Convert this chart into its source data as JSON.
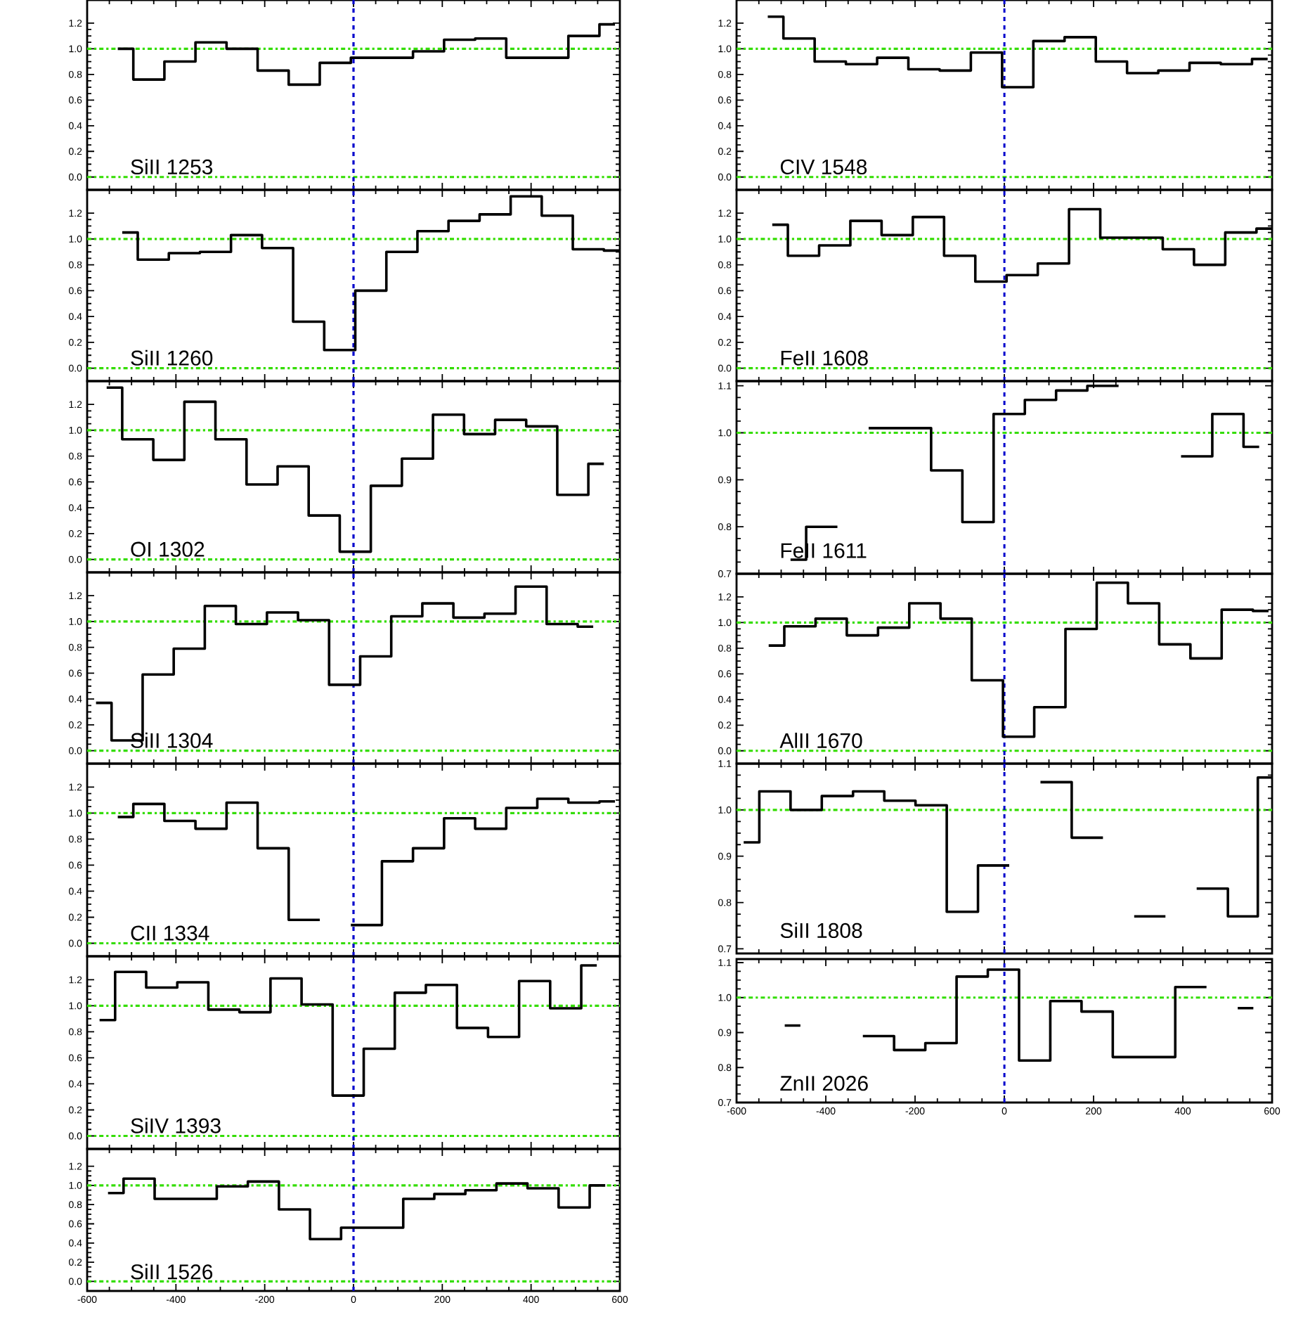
{
  "chart_data": [
    {
      "type": "step",
      "title": "SiII 1253",
      "color": "#000000",
      "x": [
        -531,
        -461,
        -391,
        -321,
        -251,
        -181,
        -111,
        -41,
        29,
        99,
        169,
        239,
        309,
        379,
        449,
        519,
        589
      ],
      "values": [
        1.0,
        0.76,
        0.9,
        1.05,
        1.0,
        0.83,
        0.72,
        0.89,
        0.93,
        0.93,
        0.98,
        1.07,
        1.08,
        0.93,
        0.93,
        1.1,
        1.19
      ],
      "xlim": [
        -600,
        600
      ],
      "ylim": [
        -0.1,
        1.38
      ],
      "xticks": [
        -600,
        -400,
        -200,
        0,
        200,
        400,
        600
      ],
      "yticks": [
        {
          "value": 0,
          "label": "0.0"
        },
        {
          "value": 0.2,
          "label": "0.2"
        },
        {
          "value": 0.4,
          "label": "0.4"
        },
        {
          "value": 0.6,
          "label": "0.6"
        },
        {
          "value": 0.8,
          "label": "0.8"
        },
        {
          "value": 1.0,
          "label": "1.0"
        },
        {
          "value": 1.2,
          "label": "1.2"
        }
      ],
      "tick_labels": "y",
      "ref_lines": [
        {
          "axis": "y",
          "value": 0,
          "color": "#33dd00",
          "line_style": "dashdot"
        },
        {
          "axis": "y",
          "value": 1,
          "color": "#33dd00",
          "line_style": "dashdot"
        },
        {
          "axis": "x",
          "value": 0,
          "color": "#0000cc",
          "line_style": "dashed"
        }
      ]
    },
    {
      "type": "step",
      "title": "SiII 1260",
      "color": "#000000",
      "x": [
        -521,
        -451,
        -381,
        -311,
        -241,
        -171,
        -101,
        -31,
        39,
        109,
        179,
        249,
        319,
        389,
        459,
        529,
        599
      ],
      "values": [
        1.05,
        0.84,
        0.89,
        0.9,
        1.03,
        0.93,
        0.36,
        0.14,
        0.6,
        0.9,
        1.06,
        1.14,
        1.19,
        1.33,
        1.18,
        0.92,
        0.91
      ],
      "xlim": [
        -600,
        600
      ],
      "ylim": [
        -0.1,
        1.38
      ],
      "xticks": [
        -600,
        -400,
        -200,
        0,
        200,
        400,
        600
      ],
      "yticks": [
        {
          "value": 0,
          "label": "0.0"
        },
        {
          "value": 0.2,
          "label": "0.2"
        },
        {
          "value": 0.4,
          "label": "0.4"
        },
        {
          "value": 0.6,
          "label": "0.6"
        },
        {
          "value": 0.8,
          "label": "0.8"
        },
        {
          "value": 1.0,
          "label": "1.0"
        },
        {
          "value": 1.2,
          "label": "1.2"
        }
      ],
      "tick_labels": "y",
      "ref_lines": [
        {
          "axis": "y",
          "value": 0,
          "color": "#33dd00",
          "line_style": "dashdot"
        },
        {
          "axis": "y",
          "value": 1,
          "color": "#33dd00",
          "line_style": "dashdot"
        },
        {
          "axis": "x",
          "value": 0,
          "color": "#0000cc",
          "line_style": "dashed"
        }
      ]
    },
    {
      "type": "step",
      "title": "OI 1302",
      "color": "#000000",
      "x": [
        -556,
        -486,
        -416,
        -346,
        -276,
        -206,
        -136,
        -66,
        4,
        74,
        144,
        214,
        284,
        354,
        424,
        494,
        564
      ],
      "values": [
        1.33,
        0.93,
        0.77,
        1.22,
        0.93,
        0.58,
        0.72,
        0.34,
        0.06,
        0.57,
        0.78,
        1.12,
        0.97,
        1.08,
        1.03,
        0.5,
        0.74
      ],
      "xlim": [
        -600,
        600
      ],
      "ylim": [
        -0.1,
        1.38
      ],
      "xticks": [
        -600,
        -400,
        -200,
        0,
        200,
        400,
        600
      ],
      "yticks": [
        {
          "value": 0,
          "label": "0.0"
        },
        {
          "value": 0.2,
          "label": "0.2"
        },
        {
          "value": 0.4,
          "label": "0.4"
        },
        {
          "value": 0.6,
          "label": "0.6"
        },
        {
          "value": 0.8,
          "label": "0.8"
        },
        {
          "value": 1.0,
          "label": "1.0"
        },
        {
          "value": 1.2,
          "label": "1.2"
        }
      ],
      "tick_labels": "y",
      "ref_lines": [
        {
          "axis": "y",
          "value": 0,
          "color": "#33dd00",
          "line_style": "dashdot"
        },
        {
          "axis": "y",
          "value": 1,
          "color": "#33dd00",
          "line_style": "dashdot"
        },
        {
          "axis": "x",
          "value": 0,
          "color": "#0000cc",
          "line_style": "dashed"
        }
      ]
    },
    {
      "type": "step",
      "title": "SiII 1304",
      "color": "#000000",
      "x": [
        -580,
        -510,
        -440,
        -370,
        -300,
        -230,
        -160,
        -90,
        -20,
        50,
        120,
        190,
        260,
        330,
        400,
        470,
        540
      ],
      "values": [
        0.37,
        0.08,
        0.59,
        0.79,
        1.12,
        0.98,
        1.07,
        1.01,
        0.51,
        0.73,
        1.04,
        1.14,
        1.03,
        1.06,
        1.27,
        0.98,
        0.96
      ],
      "xlim": [
        -600,
        600
      ],
      "ylim": [
        -0.1,
        1.38
      ],
      "xticks": [
        -600,
        -400,
        -200,
        0,
        200,
        400,
        600
      ],
      "yticks": [
        {
          "value": 0,
          "label": "0.0"
        },
        {
          "value": 0.2,
          "label": "0.2"
        },
        {
          "value": 0.4,
          "label": "0.4"
        },
        {
          "value": 0.6,
          "label": "0.6"
        },
        {
          "value": 0.8,
          "label": "0.8"
        },
        {
          "value": 1.0,
          "label": "1.0"
        },
        {
          "value": 1.2,
          "label": "1.2"
        }
      ],
      "tick_labels": "y",
      "ref_lines": [
        {
          "axis": "y",
          "value": 0,
          "color": "#33dd00",
          "line_style": "dashdot"
        },
        {
          "axis": "y",
          "value": 1,
          "color": "#33dd00",
          "line_style": "dashdot"
        },
        {
          "axis": "x",
          "value": 0,
          "color": "#0000cc",
          "line_style": "dashed"
        }
      ]
    },
    {
      "type": "step",
      "title": "CII 1334",
      "color": "#000000",
      "x": [
        -531,
        -461,
        -391,
        -321,
        -251,
        -181,
        -111,
        -41,
        29,
        99,
        169,
        239,
        309,
        379,
        449,
        519,
        589
      ],
      "values": [
        0.97,
        1.07,
        0.94,
        0.88,
        1.08,
        0.73,
        0.18,
        null,
        0.14,
        0.63,
        0.73,
        0.96,
        0.88,
        1.04,
        1.11,
        1.08,
        1.09
      ],
      "xlim": [
        -600,
        600
      ],
      "ylim": [
        -0.1,
        1.38
      ],
      "xticks": [
        -600,
        -400,
        -200,
        0,
        200,
        400,
        600
      ],
      "yticks": [
        {
          "value": 0,
          "label": "0.0"
        },
        {
          "value": 0.2,
          "label": "0.2"
        },
        {
          "value": 0.4,
          "label": "0.4"
        },
        {
          "value": 0.6,
          "label": "0.6"
        },
        {
          "value": 0.8,
          "label": "0.8"
        },
        {
          "value": 1.0,
          "label": "1.0"
        },
        {
          "value": 1.2,
          "label": "1.2"
        }
      ],
      "tick_labels": "y",
      "ref_lines": [
        {
          "axis": "y",
          "value": 0,
          "color": "#33dd00",
          "line_style": "dashdot"
        },
        {
          "axis": "y",
          "value": 1,
          "color": "#33dd00",
          "line_style": "dashdot"
        },
        {
          "axis": "x",
          "value": 0,
          "color": "#0000cc",
          "line_style": "dashed"
        }
      ]
    },
    {
      "type": "step",
      "title": "SiIV 1393",
      "color": "#000000",
      "x": [
        -572,
        -502,
        -432,
        -362,
        -292,
        -222,
        -152,
        -82,
        -12,
        58,
        128,
        198,
        268,
        338,
        408,
        478,
        548
      ],
      "values": [
        0.89,
        1.26,
        1.14,
        1.18,
        0.97,
        0.95,
        1.21,
        1.01,
        0.31,
        0.67,
        1.1,
        1.16,
        0.83,
        0.76,
        1.19,
        0.98,
        1.31
      ],
      "xlim": [
        -600,
        600
      ],
      "ylim": [
        -0.1,
        1.38
      ],
      "xticks": [
        -600,
        -400,
        -200,
        0,
        200,
        400,
        600
      ],
      "yticks": [
        {
          "value": 0,
          "label": "0.0"
        },
        {
          "value": 0.2,
          "label": "0.2"
        },
        {
          "value": 0.4,
          "label": "0.4"
        },
        {
          "value": 0.6,
          "label": "0.6"
        },
        {
          "value": 0.8,
          "label": "0.8"
        },
        {
          "value": 1.0,
          "label": "1.0"
        },
        {
          "value": 1.2,
          "label": "1.2"
        }
      ],
      "tick_labels": "y",
      "ref_lines": [
        {
          "axis": "y",
          "value": 0,
          "color": "#33dd00",
          "line_style": "dashdot"
        },
        {
          "axis": "y",
          "value": 1,
          "color": "#33dd00",
          "line_style": "dashdot"
        },
        {
          "axis": "x",
          "value": 0,
          "color": "#0000cc",
          "line_style": "dashed"
        }
      ]
    },
    {
      "type": "step",
      "title": "SiII 1526",
      "color": "#000000",
      "x": [
        -553,
        -483,
        -413,
        -343,
        -273,
        -203,
        -133,
        -63,
        7,
        77,
        147,
        217,
        287,
        357,
        427,
        497,
        567
      ],
      "values": [
        0.92,
        1.07,
        0.86,
        0.86,
        0.99,
        1.04,
        0.75,
        0.44,
        0.56,
        0.56,
        0.86,
        0.91,
        0.95,
        1.02,
        0.97,
        0.77,
        1.0
      ],
      "xlim": [
        -600,
        600
      ],
      "ylim": [
        -0.1,
        1.38
      ],
      "xticks": [
        -600,
        -400,
        -200,
        0,
        200,
        400,
        600
      ],
      "yticks": [
        {
          "value": 0,
          "label": "0.0"
        },
        {
          "value": 0.2,
          "label": "0.2"
        },
        {
          "value": 0.4,
          "label": "0.4"
        },
        {
          "value": 0.6,
          "label": "0.6"
        },
        {
          "value": 0.8,
          "label": "0.8"
        },
        {
          "value": 1.0,
          "label": "1.0"
        },
        {
          "value": 1.2,
          "label": "1.2"
        }
      ],
      "ref_lines": [
        {
          "axis": "y",
          "value": 0,
          "color": "#33dd00",
          "line_style": "dashdot"
        },
        {
          "axis": "y",
          "value": 1,
          "color": "#33dd00",
          "line_style": "dashdot"
        },
        {
          "axis": "x",
          "value": 0,
          "color": "#0000cc",
          "line_style": "dashed"
        }
      ]
    },
    {
      "type": "step",
      "title": "CIV 1548",
      "color": "#000000",
      "x": [
        -530,
        -460,
        -390,
        -320,
        -250,
        -180,
        -110,
        -40,
        30,
        100,
        170,
        240,
        310,
        380,
        450,
        520,
        590
      ],
      "values": [
        1.25,
        1.08,
        0.9,
        0.88,
        0.93,
        0.84,
        0.83,
        0.97,
        0.7,
        1.06,
        1.09,
        0.9,
        0.81,
        0.83,
        0.89,
        0.88,
        0.92
      ],
      "xlim": [
        -600,
        600
      ],
      "ylim": [
        -0.1,
        1.38
      ],
      "xticks": [
        -600,
        -400,
        -200,
        0,
        200,
        400,
        600
      ],
      "yticks": [
        {
          "value": 0,
          "label": "0.0"
        },
        {
          "value": 0.2,
          "label": "0.2"
        },
        {
          "value": 0.4,
          "label": "0.4"
        },
        {
          "value": 0.6,
          "label": "0.6"
        },
        {
          "value": 0.8,
          "label": "0.8"
        },
        {
          "value": 1.0,
          "label": "1.0"
        },
        {
          "value": 1.2,
          "label": "1.2"
        }
      ],
      "tick_labels": "y",
      "ref_lines": [
        {
          "axis": "y",
          "value": 0,
          "color": "#33dd00",
          "line_style": "dashdot"
        },
        {
          "axis": "y",
          "value": 1,
          "color": "#33dd00",
          "line_style": "dashdot"
        },
        {
          "axis": "x",
          "value": 0,
          "color": "#0000cc",
          "line_style": "dashed"
        }
      ]
    },
    {
      "type": "step",
      "title": "FeII 1608",
      "color": "#000000",
      "x": [
        -520,
        -450,
        -380,
        -310,
        -240,
        -170,
        -100,
        -30,
        40,
        110,
        180,
        250,
        320,
        390,
        460,
        530,
        600
      ],
      "values": [
        1.11,
        0.87,
        0.95,
        1.14,
        1.03,
        1.17,
        0.87,
        0.67,
        0.72,
        0.81,
        1.23,
        1.01,
        1.01,
        0.92,
        0.8,
        1.05,
        1.08
      ],
      "xlim": [
        -600,
        600
      ],
      "ylim": [
        -0.1,
        1.38
      ],
      "xticks": [
        -600,
        -400,
        -200,
        0,
        200,
        400,
        600
      ],
      "yticks": [
        {
          "value": 0,
          "label": "0.0"
        },
        {
          "value": 0.2,
          "label": "0.2"
        },
        {
          "value": 0.4,
          "label": "0.4"
        },
        {
          "value": 0.6,
          "label": "0.6"
        },
        {
          "value": 0.8,
          "label": "0.8"
        },
        {
          "value": 1.0,
          "label": "1.0"
        },
        {
          "value": 1.2,
          "label": "1.2"
        }
      ],
      "tick_labels": "y",
      "ref_lines": [
        {
          "axis": "y",
          "value": 0,
          "color": "#33dd00",
          "line_style": "dashdot"
        },
        {
          "axis": "y",
          "value": 1,
          "color": "#33dd00",
          "line_style": "dashdot"
        },
        {
          "axis": "x",
          "value": 0,
          "color": "#0000cc",
          "line_style": "dashed"
        }
      ]
    },
    {
      "type": "step",
      "title": "FeII 1611",
      "color": "#000000",
      "x": [
        -479,
        -409,
        -339,
        -269,
        -199,
        -129,
        -59,
        11,
        81,
        151,
        221,
        291,
        361,
        431,
        501,
        571
      ],
      "values": [
        0.73,
        0.8,
        null,
        1.01,
        1.01,
        0.92,
        0.81,
        1.04,
        1.07,
        1.09,
        1.1,
        null,
        null,
        0.95,
        1.04,
        0.97
      ],
      "xlim": [
        -600,
        600
      ],
      "ylim": [
        0.7,
        1.11
      ],
      "xticks": [
        -600,
        -400,
        -200,
        0,
        200,
        400,
        600
      ],
      "yticks": [
        {
          "value": 0.7,
          "label": "0.7"
        },
        {
          "value": 0.8,
          "label": "0.8"
        },
        {
          "value": 0.9,
          "label": "0.9"
        },
        {
          "value": 1.0,
          "label": "1.0"
        },
        {
          "value": 1.1,
          "label": "1.1"
        }
      ],
      "tick_labels": "y",
      "ref_lines": [
        {
          "axis": "y",
          "value": 1,
          "color": "#33dd00",
          "line_style": "dashdot"
        },
        {
          "axis": "x",
          "value": 0,
          "color": "#0000cc",
          "line_style": "dashed"
        }
      ]
    },
    {
      "type": "step",
      "title": "AlII 1670",
      "color": "#000000",
      "x": [
        -528,
        -458,
        -388,
        -318,
        -248,
        -178,
        -108,
        -38,
        32,
        102,
        172,
        242,
        312,
        382,
        452,
        522,
        592
      ],
      "values": [
        0.82,
        0.97,
        1.03,
        0.9,
        0.96,
        1.15,
        1.03,
        0.55,
        0.11,
        0.34,
        0.95,
        1.31,
        1.15,
        0.83,
        0.72,
        1.1,
        1.09
      ],
      "xlim": [
        -600,
        600
      ],
      "ylim": [
        -0.1,
        1.38
      ],
      "xticks": [
        -600,
        -400,
        -200,
        0,
        200,
        400,
        600
      ],
      "yticks": [
        {
          "value": 0,
          "label": "0.0"
        },
        {
          "value": 0.2,
          "label": "0.2"
        },
        {
          "value": 0.4,
          "label": "0.4"
        },
        {
          "value": 0.6,
          "label": "0.6"
        },
        {
          "value": 0.8,
          "label": "0.8"
        },
        {
          "value": 1.0,
          "label": "1.0"
        },
        {
          "value": 1.2,
          "label": "1.2"
        }
      ],
      "tick_labels": "y",
      "ref_lines": [
        {
          "axis": "y",
          "value": 0,
          "color": "#33dd00",
          "line_style": "dashdot"
        },
        {
          "axis": "y",
          "value": 1,
          "color": "#33dd00",
          "line_style": "dashdot"
        },
        {
          "axis": "x",
          "value": 0,
          "color": "#0000cc",
          "line_style": "dashed"
        }
      ]
    },
    {
      "type": "step",
      "title": "SiII 1808",
      "color": "#000000",
      "x": [
        -584,
        -514,
        -444,
        -374,
        -304,
        -234,
        -164,
        -94,
        -24,
        46,
        116,
        186,
        256,
        326,
        396,
        466,
        536,
        600
      ],
      "values": [
        0.93,
        1.04,
        1.0,
        1.03,
        1.04,
        1.02,
        1.01,
        0.78,
        0.88,
        null,
        1.06,
        0.94,
        null,
        0.77,
        null,
        0.83,
        0.77,
        1.07
      ],
      "xlim": [
        -600,
        600
      ],
      "ylim": [
        0.69,
        1.1
      ],
      "xticks": [
        -600,
        -400,
        -200,
        0,
        200,
        400,
        600
      ],
      "yticks": [
        {
          "value": 0.7,
          "label": "0.7"
        },
        {
          "value": 0.8,
          "label": "0.8"
        },
        {
          "value": 0.9,
          "label": "0.9"
        },
        {
          "value": 1.0,
          "label": "1.0"
        },
        {
          "value": 1.1,
          "label": "1.1"
        }
      ],
      "tick_labels": "y",
      "ref_lines": [
        {
          "axis": "y",
          "value": 1,
          "color": "#33dd00",
          "line_style": "dashdot"
        },
        {
          "axis": "x",
          "value": 0,
          "color": "#0000cc",
          "line_style": "dashed"
        }
      ]
    },
    {
      "type": "step",
      "title": "ZnII 2026",
      "color": "#000000",
      "x": [
        -492,
        -422,
        -352,
        -282,
        -212,
        -142,
        -72,
        -2,
        68,
        138,
        208,
        278,
        348,
        418,
        488,
        558
      ],
      "values": [
        0.92,
        null,
        null,
        0.89,
        0.85,
        0.87,
        1.06,
        1.08,
        0.82,
        0.99,
        0.96,
        0.83,
        0.83,
        1.03,
        null,
        0.97
      ],
      "xlim": [
        -600,
        600
      ],
      "ylim": [
        0.7,
        1.11
      ],
      "xticks": [
        -600,
        -400,
        -200,
        0,
        200,
        400,
        600
      ],
      "yticks": [
        {
          "value": 0.7,
          "label": "0.7"
        },
        {
          "value": 0.8,
          "label": "0.8"
        },
        {
          "value": 0.9,
          "label": "0.9"
        },
        {
          "value": 1.0,
          "label": "1.0"
        },
        {
          "value": 1.1,
          "label": "1.1"
        }
      ],
      "ref_lines": [
        {
          "axis": "y",
          "value": 1,
          "color": "#33dd00",
          "line_style": "dashdot"
        },
        {
          "axis": "x",
          "value": 0,
          "color": "#0000cc",
          "line_style": "dashed"
        }
      ]
    }
  ]
}
